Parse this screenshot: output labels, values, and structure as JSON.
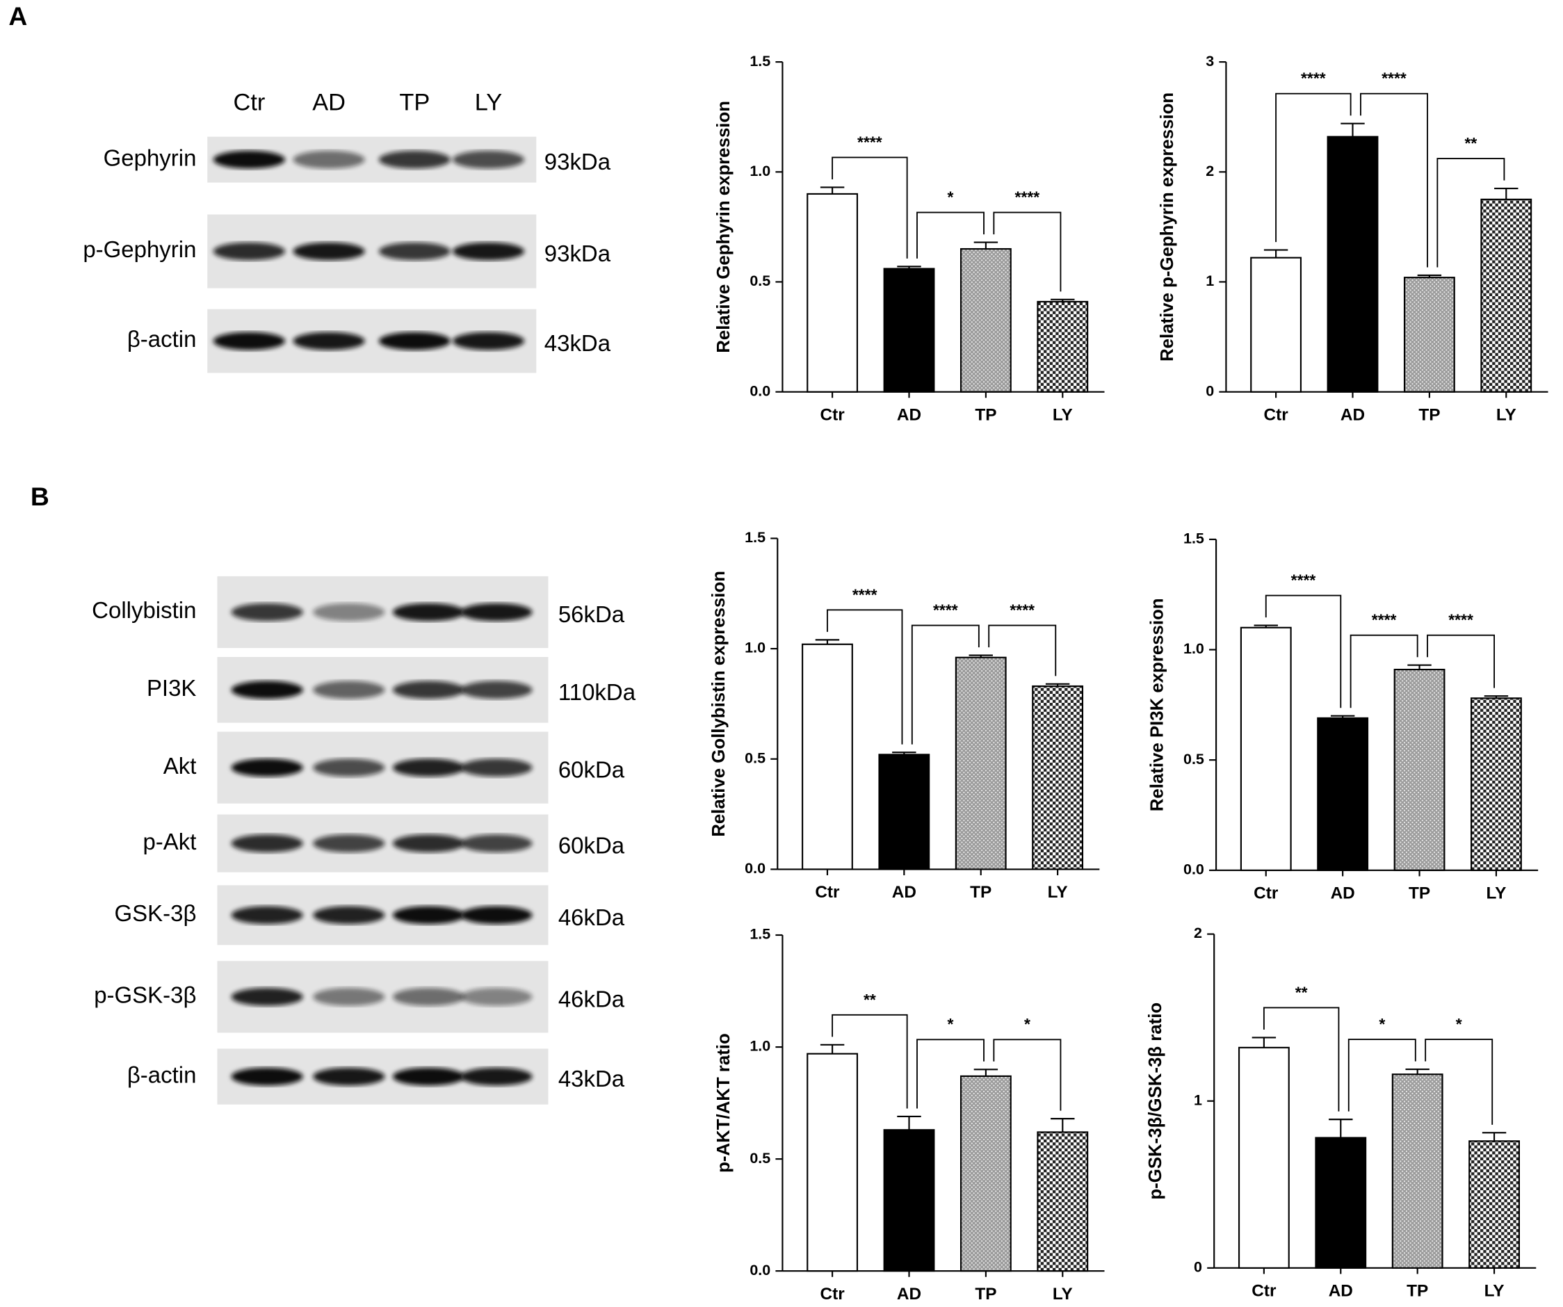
{
  "blots": [
    {
      "panel": "A",
      "lanes": [
        "Ctr",
        "AD",
        "TP",
        "LY"
      ],
      "rows": [
        {
          "protein": "Gephyrin",
          "size": "93kDa"
        },
        {
          "protein": "p-Gephyrin",
          "size": "93kDa"
        },
        {
          "protein": "β-actin",
          "size": "43kDa"
        }
      ]
    },
    {
      "panel": "B",
      "rows": [
        {
          "protein": "Collybistin",
          "size": "56kDa"
        },
        {
          "protein": "PI3K",
          "size": "110kDa"
        },
        {
          "protein": "Akt",
          "size": "60kDa"
        },
        {
          "protein": "p-Akt",
          "size": "60kDa"
        },
        {
          "protein": "GSK-3β",
          "size": "46kDa"
        },
        {
          "protein": "p-GSK-3β",
          "size": "46kDa"
        },
        {
          "protein": "β-actin",
          "size": "43kDa"
        }
      ]
    }
  ],
  "chart_data": [
    {
      "type": "bar",
      "ylabel": "Relative Gephyrin expression",
      "categories": [
        "Ctr",
        "AD",
        "TP",
        "LY"
      ],
      "values": [
        0.9,
        0.56,
        0.65,
        0.41
      ],
      "errors": [
        0.03,
        0.01,
        0.03,
        0.01
      ],
      "patterns": [
        "none",
        "solid",
        "dots",
        "checks"
      ],
      "ylim": [
        0,
        1.5
      ],
      "yticks": [
        {
          "value": 0,
          "label": "0.0"
        },
        0.5,
        {
          "value": 1,
          "label": "1.0"
        },
        1.5
      ],
      "comparisons": [
        {
          "label": "****",
          "groups": [
            "Ctr",
            "AD"
          ]
        },
        {
          "label": "*",
          "groups": [
            "AD",
            "TP"
          ]
        },
        {
          "label": "****",
          "groups": [
            "TP",
            "LY"
          ]
        }
      ]
    },
    {
      "type": "bar",
      "ylabel": "Relative p-Gephyrin expression",
      "categories": [
        "Ctr",
        "AD",
        "TP",
        "LY"
      ],
      "values": [
        1.22,
        2.32,
        1.04,
        1.75
      ],
      "errors": [
        0.07,
        0.12,
        0.02,
        0.1
      ],
      "patterns": [
        "none",
        "solid",
        "dots",
        "checks"
      ],
      "ylim": [
        0,
        3
      ],
      "yticks": [
        0,
        1,
        2,
        3
      ],
      "comparisons": [
        {
          "label": "****",
          "groups": [
            "Ctr",
            "AD"
          ]
        },
        {
          "label": "****",
          "groups": [
            "AD",
            "TP"
          ]
        },
        {
          "label": "**",
          "groups": [
            "TP",
            "LY"
          ]
        }
      ]
    },
    {
      "type": "bar",
      "ylabel": "Relative Gollybistin expression",
      "categories": [
        "Ctr",
        "AD",
        "TP",
        "LY"
      ],
      "values": [
        1.02,
        0.52,
        0.96,
        0.83
      ],
      "errors": [
        0.02,
        0.01,
        0.01,
        0.01
      ],
      "patterns": [
        "none",
        "solid",
        "dots",
        "checks"
      ],
      "ylim": [
        0,
        1.5
      ],
      "yticks": [
        {
          "value": 0,
          "label": "0.0"
        },
        0.5,
        {
          "value": 1,
          "label": "1.0"
        },
        1.5
      ],
      "comparisons": [
        {
          "label": "****",
          "groups": [
            "Ctr",
            "AD"
          ]
        },
        {
          "label": "****",
          "groups": [
            "AD",
            "TP"
          ]
        },
        {
          "label": "****",
          "groups": [
            "TP",
            "LY"
          ]
        }
      ]
    },
    {
      "type": "bar",
      "ylabel": "Relative PI3K expression",
      "categories": [
        "Ctr",
        "AD",
        "TP",
        "LY"
      ],
      "values": [
        1.1,
        0.69,
        0.91,
        0.78
      ],
      "errors": [
        0.01,
        0.01,
        0.02,
        0.01
      ],
      "patterns": [
        "none",
        "solid",
        "dots",
        "checks"
      ],
      "ylim": [
        0,
        1.5
      ],
      "yticks": [
        {
          "value": 0,
          "label": "0.0"
        },
        0.5,
        {
          "value": 1,
          "label": "1.0"
        },
        1.5
      ],
      "comparisons": [
        {
          "label": "****",
          "groups": [
            "Ctr",
            "AD"
          ]
        },
        {
          "label": "****",
          "groups": [
            "AD",
            "TP"
          ]
        },
        {
          "label": "****",
          "groups": [
            "TP",
            "LY"
          ]
        }
      ]
    },
    {
      "type": "bar",
      "ylabel": "p-AKT/AKT ratio",
      "categories": [
        "Ctr",
        "AD",
        "TP",
        "LY"
      ],
      "values": [
        0.97,
        0.63,
        0.87,
        0.62
      ],
      "errors": [
        0.04,
        0.06,
        0.03,
        0.06
      ],
      "patterns": [
        "none",
        "solid",
        "dots",
        "checks"
      ],
      "ylim": [
        0,
        1.5
      ],
      "yticks": [
        {
          "value": 0,
          "label": "0.0"
        },
        0.5,
        {
          "value": 1,
          "label": "1.0"
        },
        1.5
      ],
      "comparisons": [
        {
          "label": "**",
          "groups": [
            "Ctr",
            "AD"
          ]
        },
        {
          "label": "*",
          "groups": [
            "AD",
            "TP"
          ]
        },
        {
          "label": "*",
          "groups": [
            "TP",
            "LY"
          ]
        }
      ]
    },
    {
      "type": "bar",
      "ylabel": "p-GSK-3β/GSK-3β ratio",
      "categories": [
        "Ctr",
        "AD",
        "TP",
        "LY"
      ],
      "values": [
        1.32,
        0.78,
        1.16,
        0.76
      ],
      "errors": [
        0.06,
        0.11,
        0.03,
        0.05
      ],
      "patterns": [
        "none",
        "solid",
        "dots",
        "checks"
      ],
      "ylim": [
        0,
        2
      ],
      "yticks": [
        0,
        1,
        2
      ],
      "comparisons": [
        {
          "label": "**",
          "groups": [
            "Ctr",
            "AD"
          ]
        },
        {
          "label": "*",
          "groups": [
            "AD",
            "TP"
          ]
        },
        {
          "label": "*",
          "groups": [
            "TP",
            "LY"
          ]
        }
      ]
    }
  ]
}
